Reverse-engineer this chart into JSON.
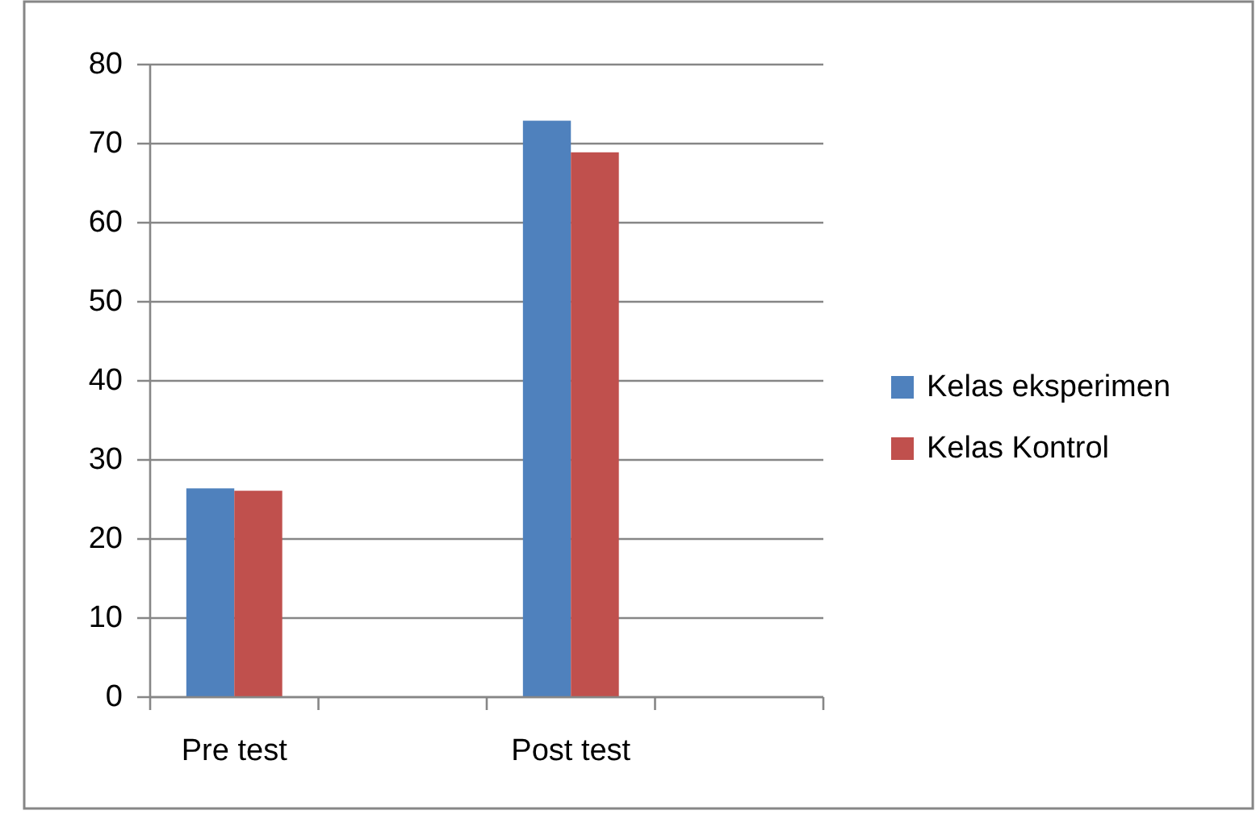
{
  "chart_data": {
    "type": "bar",
    "categories": [
      "Pre test",
      null,
      "Post test",
      null
    ],
    "series": [
      {
        "name": "Kelas eksperimen",
        "color": "#4f81bd",
        "values": [
          26.4,
          null,
          72.9,
          null
        ]
      },
      {
        "name": "Kelas Kontrol",
        "color": "#c0504d",
        "values": [
          26.1,
          null,
          68.9,
          null
        ]
      }
    ],
    "ylim": [
      0,
      80
    ],
    "yticks": [
      0,
      10,
      20,
      30,
      40,
      50,
      60,
      70,
      80
    ],
    "grid": "y",
    "legend": "right"
  }
}
